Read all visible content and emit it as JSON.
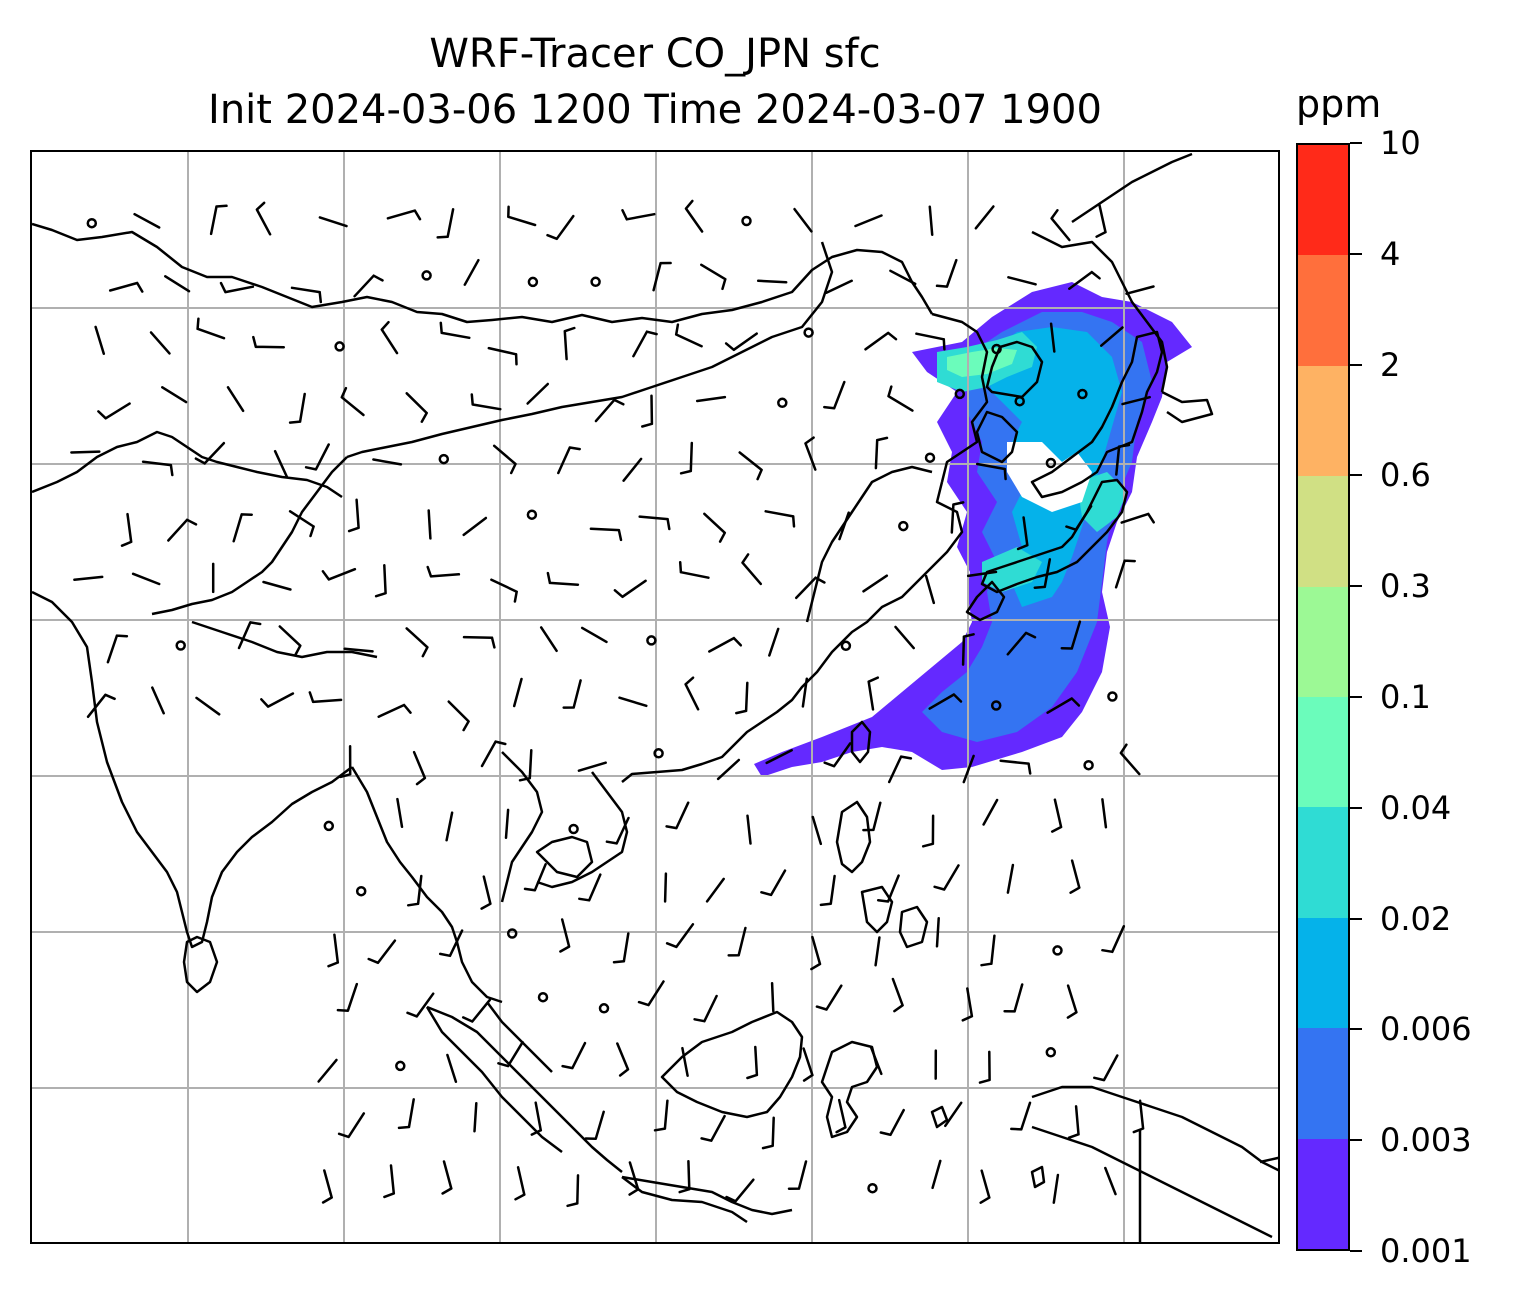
{
  "title": {
    "line1": "WRF-Tracer CO_JPN sfc",
    "line2": "Init 2024-03-06 1200 Time 2024-03-07 1900"
  },
  "colorbar": {
    "unit": "ppm",
    "levels": [
      "0.001",
      "0.003",
      "0.006",
      "0.02",
      "0.04",
      "0.1",
      "0.3",
      "0.6",
      "2",
      "4",
      "10"
    ],
    "colors": [
      "#6429ff",
      "#3474f2",
      "#05b2ea",
      "#2fdcd4",
      "#6bfcbb",
      "#9cf995",
      "#d0e084",
      "#feb263",
      "#ff6f3c",
      "#ff2a19"
    ]
  },
  "map": {
    "gridline_color": "#b0b0b0",
    "coastline_color": "#000000",
    "wind_barb_color": "#000000",
    "plume_colors": {
      "outer": "#6429ff",
      "inner": "#3474f2",
      "mid": "#05b2ea",
      "core": "#2fdcd4",
      "peak": "#6bfcbb"
    }
  }
}
